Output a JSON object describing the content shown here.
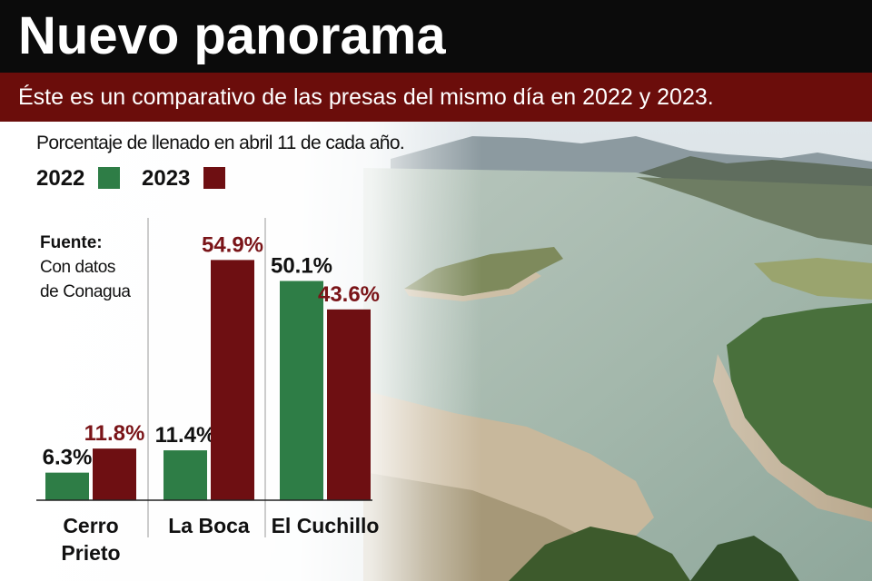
{
  "header": {
    "title": "Nuevo panorama",
    "subtitle": "Éste es un comparativo de las presas del mismo día en 2022 y 2023."
  },
  "caption": "Porcentaje de llenado en abril 11 de cada año.",
  "legend": {
    "items": [
      {
        "label": "2022",
        "color": "#2e7d46"
      },
      {
        "label": "2023",
        "color": "#6e0f12"
      }
    ]
  },
  "source": {
    "label": "Fuente:",
    "lines": [
      "Con datos",
      "de Conagua"
    ]
  },
  "chart_data": {
    "type": "bar",
    "title": "",
    "xlabel": "",
    "ylabel": "",
    "ylim": [
      0,
      55
    ],
    "grid": false,
    "legend_position": "top-left",
    "categories": [
      {
        "lines": [
          "Cerro",
          "Prieto"
        ]
      },
      {
        "lines": [
          "La Boca"
        ]
      },
      {
        "lines": [
          "El Cuchillo"
        ]
      }
    ],
    "series": [
      {
        "name": "2022",
        "color": "#2e7d46",
        "label_color": "#111111",
        "values": [
          6.3,
          11.4,
          50.1
        ],
        "labels": [
          "6.3%",
          "11.4%",
          "50.1%"
        ]
      },
      {
        "name": "2023",
        "color": "#6e0f12",
        "label_color": "#7a1418",
        "values": [
          11.8,
          54.9,
          43.6
        ],
        "labels": [
          "11.8%",
          "54.9%",
          "43.6%"
        ]
      }
    ]
  }
}
